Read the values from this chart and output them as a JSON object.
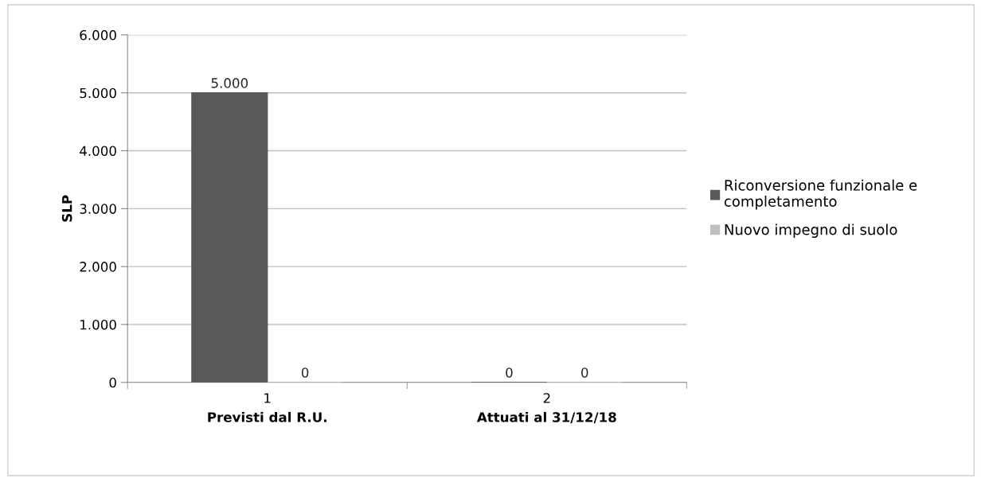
{
  "chart_data": {
    "type": "bar",
    "ylabel": "SLP",
    "categories": [
      "1\nPrevisti dal R.U.",
      "2\nAttuati al 31/12/18"
    ],
    "series": [
      {
        "name": "Riconversione funzionale e completamento",
        "color": "#595959",
        "values": [
          5000,
          0
        ],
        "value_labels": [
          "5.000",
          "0"
        ]
      },
      {
        "name": "Nuovo impegno di suolo",
        "color": "#bfbfbf",
        "values": [
          0,
          0
        ],
        "value_labels": [
          "0",
          "0"
        ]
      }
    ],
    "ylim": [
      0,
      6000
    ],
    "yticks": [
      {
        "value": 0,
        "label": "0"
      },
      {
        "value": 1000,
        "label": "1.000"
      },
      {
        "value": 2000,
        "label": "2.000"
      },
      {
        "value": 3000,
        "label": "3.000"
      },
      {
        "value": 4000,
        "label": "4.000"
      },
      {
        "value": 5000,
        "label": "5.000"
      },
      {
        "value": 6000,
        "label": "6.000"
      }
    ],
    "grid": "y",
    "legend": "right"
  }
}
